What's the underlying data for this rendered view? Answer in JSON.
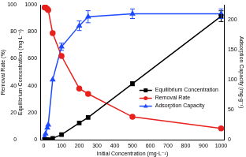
{
  "chart_data": {
    "type": "line",
    "xlabel": "Initial Concentration (mg·L⁻¹)",
    "ylabel": "Equilibrium Concentration (mg·L⁻¹)",
    "y3label": "Removal Rate (%)",
    "y2label": "Adsorption Capacity (mg·g⁻¹)",
    "x": [
      5,
      10,
      20,
      25,
      50,
      100,
      200,
      250,
      500,
      1000
    ],
    "xlim": [
      -20,
      1020
    ],
    "xticks": [
      0,
      100,
      200,
      300,
      400,
      500,
      600,
      700,
      800,
      900,
      1000
    ],
    "ylim": [
      0,
      1000
    ],
    "yticks": [
      0,
      200,
      400,
      600,
      800,
      1000
    ],
    "y3lim": [
      0,
      100
    ],
    "y3ticks": [
      0,
      20,
      40,
      60,
      80,
      100
    ],
    "y2lim": [
      0,
      225
    ],
    "y2ticks": [
      0,
      50,
      100,
      150,
      200
    ],
    "grid": false,
    "legend": "lower right",
    "series": [
      {
        "name": "Equilibrium Concentration",
        "color": "#000000",
        "marker": "square",
        "axis": "y",
        "values": [
          0.1,
          0.2,
          0.6,
          1,
          10.5,
          38,
          124,
          165,
          415,
          915
        ],
        "errors": [
          0,
          0,
          0,
          0,
          0,
          0,
          0,
          0,
          15,
          40
        ]
      },
      {
        "name": "Removal Rate",
        "color": "#e8211d",
        "marker": "circle",
        "axis": "y3",
        "values": [
          98,
          98,
          97,
          96,
          79,
          62,
          38,
          34,
          17,
          8.5
        ]
      },
      {
        "name": "Adsorption Capacity",
        "color": "#1e4bff",
        "marker": "triangle",
        "axis": "y2",
        "values": [
          5,
          10,
          20,
          25,
          100,
          155,
          190,
          205,
          210,
          210
        ],
        "errors": [
          0,
          0,
          0,
          0,
          0,
          6,
          8,
          10,
          8,
          8
        ]
      }
    ]
  }
}
